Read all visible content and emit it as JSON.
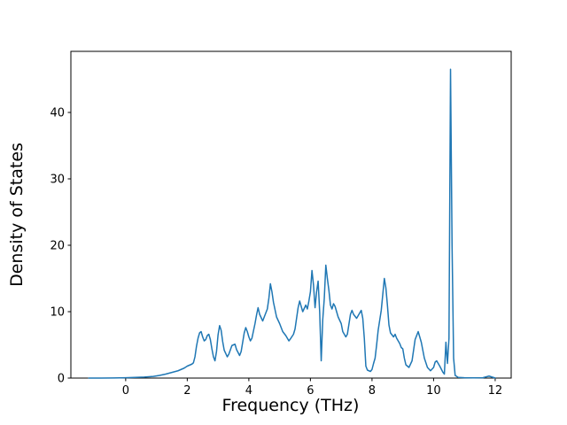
{
  "chart_data": {
    "type": "line",
    "title": "",
    "xlabel": "Frequency (THz)",
    "ylabel": "Density of States",
    "xlim": [
      -1.78,
      12.52
    ],
    "ylim": [
      0,
      49.2
    ],
    "xticks": [
      0,
      2,
      4,
      6,
      8,
      10,
      12
    ],
    "yticks": [
      0,
      10,
      20,
      30,
      40
    ],
    "grid": false,
    "legend": "none",
    "line_color": "#1f77b4",
    "line_width": 1.5,
    "x": [
      -1.2,
      -0.8,
      -0.4,
      0,
      0.3,
      0.6,
      0.9,
      1.1,
      1.3,
      1.5,
      1.7,
      1.9,
      2.0,
      2.1,
      2.15,
      2.2,
      2.25,
      2.3,
      2.35,
      2.4,
      2.45,
      2.5,
      2.55,
      2.6,
      2.65,
      2.7,
      2.75,
      2.8,
      2.85,
      2.9,
      2.95,
      3.0,
      3.05,
      3.1,
      3.15,
      3.2,
      3.3,
      3.35,
      3.45,
      3.55,
      3.6,
      3.7,
      3.75,
      3.85,
      3.9,
      3.95,
      4.0,
      4.05,
      4.1,
      4.2,
      4.25,
      4.3,
      4.35,
      4.45,
      4.5,
      4.6,
      4.65,
      4.7,
      4.75,
      4.8,
      4.9,
      5.0,
      5.1,
      5.2,
      5.3,
      5.35,
      5.45,
      5.5,
      5.55,
      5.6,
      5.65,
      5.7,
      5.75,
      5.85,
      5.9,
      5.95,
      6.0,
      6.05,
      6.1,
      6.15,
      6.2,
      6.25,
      6.3,
      6.35,
      6.4,
      6.45,
      6.5,
      6.55,
      6.6,
      6.65,
      6.7,
      6.75,
      6.8,
      6.9,
      7.0,
      7.05,
      7.15,
      7.2,
      7.3,
      7.35,
      7.4,
      7.5,
      7.55,
      7.65,
      7.7,
      7.75,
      7.8,
      7.85,
      7.95,
      8.0,
      8.05,
      8.1,
      8.15,
      8.2,
      8.3,
      8.35,
      8.4,
      8.45,
      8.5,
      8.55,
      8.6,
      8.7,
      8.75,
      8.8,
      8.9,
      8.95,
      9.0,
      9.05,
      9.1,
      9.2,
      9.3,
      9.4,
      9.5,
      9.55,
      9.6,
      9.7,
      9.8,
      9.9,
      10.0,
      10.05,
      10.1,
      10.2,
      10.3,
      10.35,
      10.4,
      10.45,
      10.5,
      10.55,
      10.6,
      10.65,
      10.7,
      10.8,
      11.0,
      11.3,
      11.6,
      11.8,
      11.9,
      12.0
    ],
    "y": [
      0,
      0,
      0.02,
      0.05,
      0.1,
      0.15,
      0.25,
      0.4,
      0.6,
      0.85,
      1.1,
      1.5,
      1.8,
      2.0,
      2.1,
      2.3,
      3.2,
      4.8,
      6.0,
      6.8,
      7.0,
      6.2,
      5.6,
      5.8,
      6.4,
      6.6,
      5.8,
      4.4,
      3.2,
      2.6,
      4.0,
      6.5,
      7.9,
      7.2,
      5.5,
      4.2,
      3.2,
      3.6,
      4.9,
      5.1,
      4.3,
      3.4,
      4.0,
      6.8,
      7.6,
      7.0,
      6.2,
      5.6,
      6.0,
      8.2,
      9.5,
      10.6,
      9.6,
      8.6,
      9.2,
      10.4,
      12.0,
      14.2,
      13.0,
      11.4,
      9.2,
      8.2,
      7.0,
      6.4,
      5.6,
      5.9,
      6.6,
      7.4,
      9.0,
      10.6,
      11.6,
      10.8,
      10.0,
      11.0,
      10.4,
      11.6,
      13.0,
      16.2,
      14.0,
      10.6,
      13.0,
      14.6,
      10.0,
      2.6,
      8.8,
      12.0,
      17.0,
      15.0,
      13.2,
      11.0,
      10.4,
      11.2,
      10.8,
      9.2,
      8.2,
      7.0,
      6.2,
      6.6,
      9.6,
      10.2,
      9.6,
      9.0,
      9.4,
      10.2,
      9.0,
      6.0,
      1.8,
      1.2,
      1.0,
      1.3,
      2.2,
      3.0,
      5.0,
      7.2,
      10.2,
      12.6,
      15.0,
      13.6,
      11.0,
      8.0,
      6.8,
      6.2,
      6.6,
      6.0,
      5.2,
      4.6,
      4.4,
      3.0,
      2.0,
      1.6,
      2.6,
      5.8,
      7.0,
      6.2,
      5.4,
      3.0,
      1.6,
      1.1,
      1.6,
      2.4,
      2.6,
      1.8,
      0.9,
      0.6,
      5.4,
      2.2,
      6.0,
      46.5,
      20.0,
      3.0,
      0.4,
      0.1,
      0.05,
      0.03,
      0.05,
      0.3,
      0.15,
      0.02
    ]
  }
}
